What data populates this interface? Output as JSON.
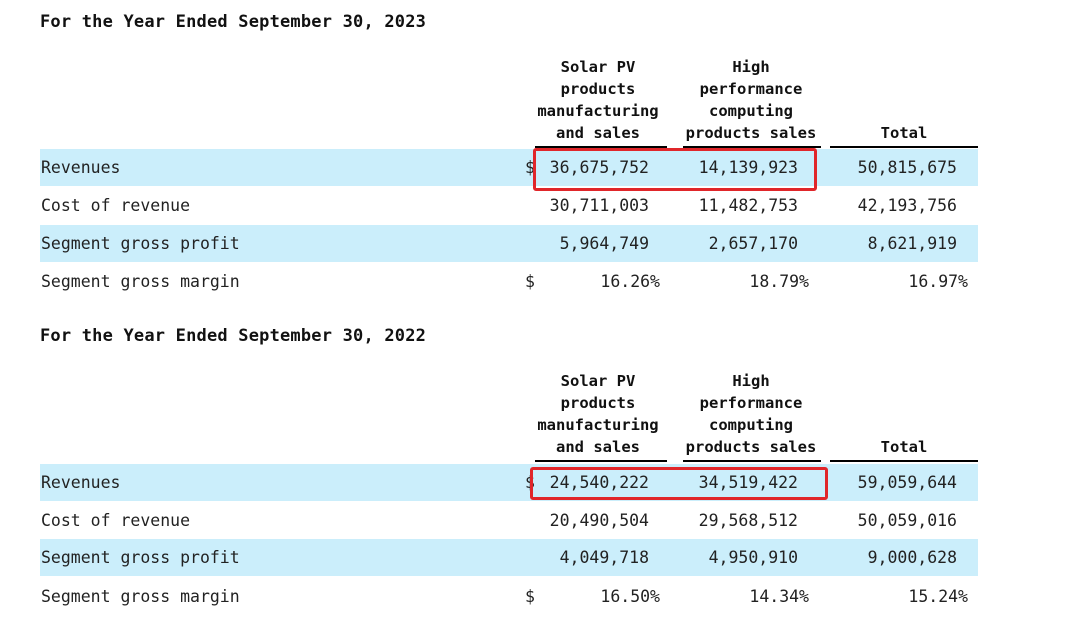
{
  "sections": [
    {
      "title": "For the Year Ended September 30, 2023",
      "columns": [
        {
          "lines": [
            "Solar PV",
            "products",
            "manufacturing",
            "and sales"
          ]
        },
        {
          "lines": [
            "High",
            "performance",
            "computing",
            "products sales"
          ]
        },
        {
          "lines": [
            "Total"
          ]
        }
      ],
      "rows": [
        {
          "label": "Revenues",
          "currency": "$",
          "values": [
            "36,675,752",
            "14,139,923",
            "50,815,675"
          ]
        },
        {
          "label": "Cost of revenue",
          "currency": "",
          "values": [
            "30,711,003",
            "11,482,753",
            "42,193,756"
          ]
        },
        {
          "label": "Segment gross profit",
          "currency": "",
          "values": [
            "5,964,749",
            "2,657,170",
            "8,621,919"
          ]
        },
        {
          "label": "Segment gross margin",
          "currency": "$",
          "values": [
            "16.26%",
            "18.79%",
            "16.97%"
          ]
        }
      ]
    },
    {
      "title": "For the Year Ended September 30, 2022",
      "columns": [
        {
          "lines": [
            "Solar PV",
            "products",
            "manufacturing",
            "and sales"
          ]
        },
        {
          "lines": [
            "High",
            "performance",
            "computing",
            "products sales"
          ]
        },
        {
          "lines": [
            "Total"
          ]
        }
      ],
      "rows": [
        {
          "label": "Revenues",
          "currency": "$",
          "values": [
            "24,540,222",
            "34,519,422",
            "59,059,644"
          ]
        },
        {
          "label": "Cost of revenue",
          "currency": "",
          "values": [
            "20,490,504",
            "29,568,512",
            "50,059,016"
          ]
        },
        {
          "label": "Segment gross profit",
          "currency": "",
          "values": [
            "4,049,718",
            "4,950,910",
            "9,000,628"
          ]
        },
        {
          "label": "Segment gross margin",
          "currency": "$",
          "values": [
            "16.50%",
            "14.34%",
            "15.24%"
          ]
        }
      ]
    }
  ],
  "colors": {
    "row_shade": "#cbeefb",
    "highlight_box": "#e0262a"
  }
}
